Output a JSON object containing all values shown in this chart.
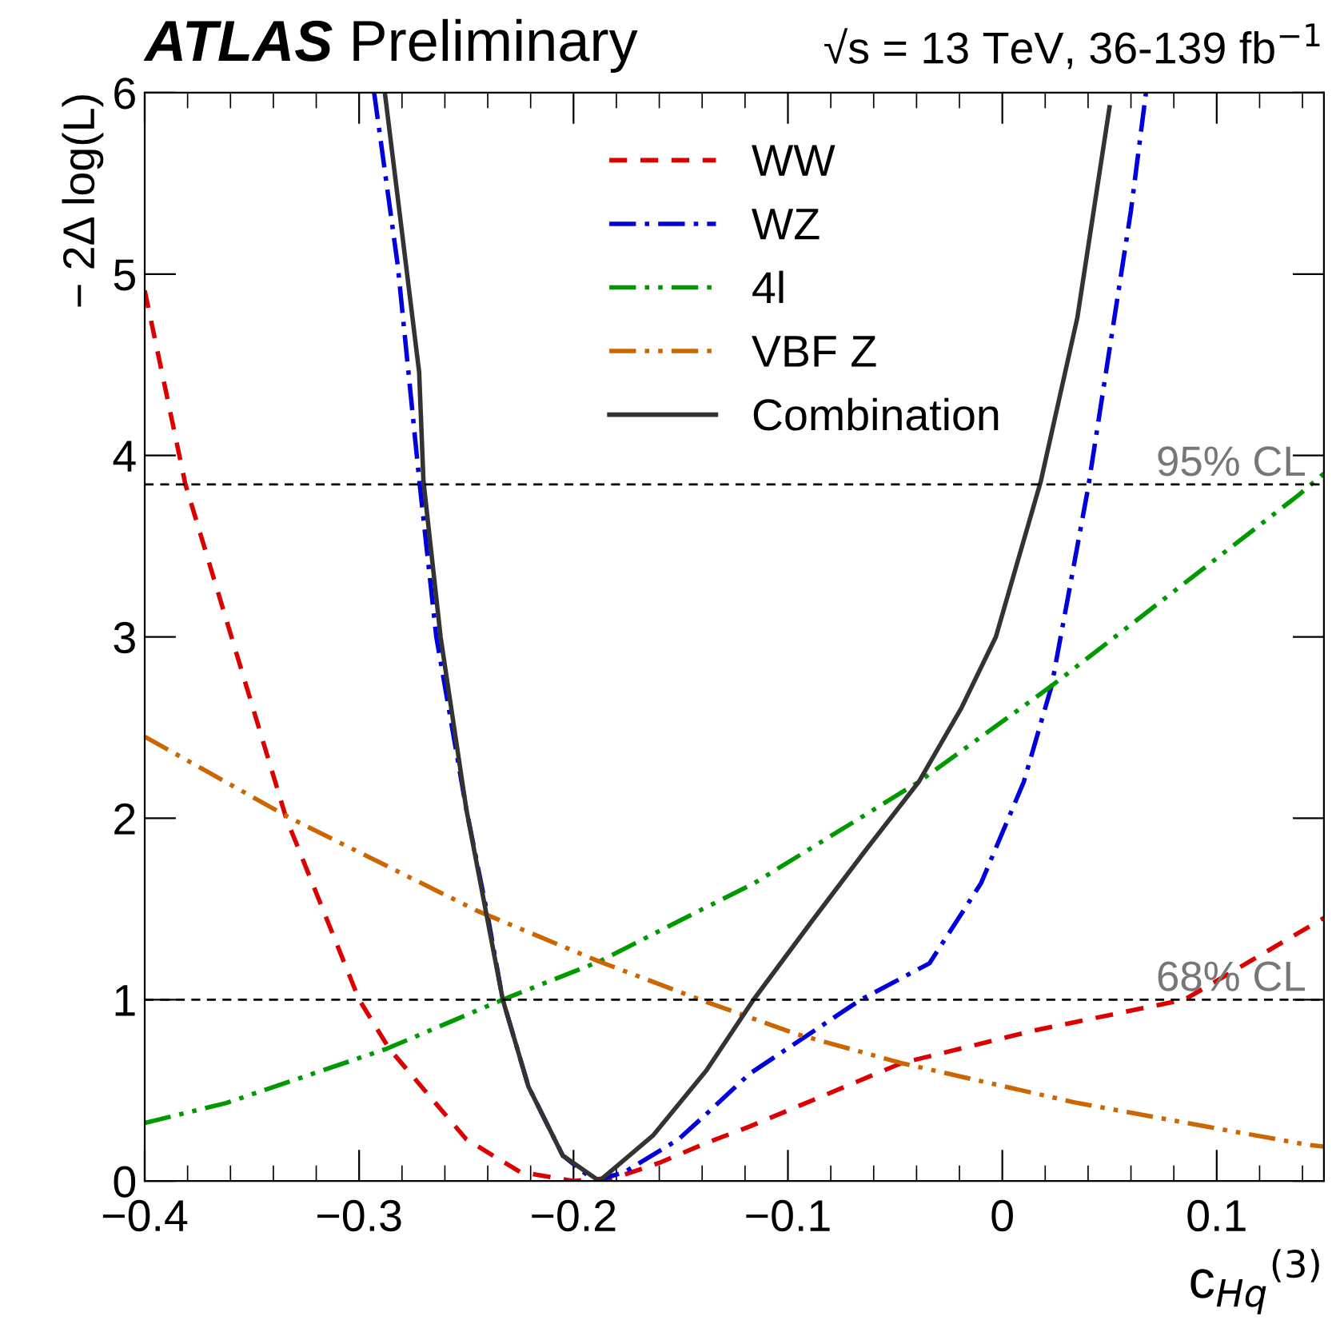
{
  "chart_data": {
    "type": "line",
    "title": "ATLAS",
    "subtitle": "Preliminary",
    "annotations": [
      "√s = 13 TeV, 36-139 fb$^{−1}$"
    ],
    "xlabel": "c$_{Hq}$$^{(3)}$",
    "ylabel": "− 2Δ log(L)",
    "xlim": [
      -0.4,
      0.15
    ],
    "ylim": [
      0,
      6
    ],
    "xticks": [
      {
        "value": -0.4,
        "label": "−0.4"
      },
      {
        "value": -0.3,
        "label": "−0.3"
      },
      {
        "value": -0.2,
        "label": "−0.2"
      },
      {
        "value": -0.1,
        "label": "−0.1"
      },
      0,
      0.1
    ],
    "yticks": [
      0,
      1,
      2,
      3,
      4,
      5,
      6
    ],
    "grid": false,
    "legend": "top",
    "ref_lines": [
      {
        "axis": "y",
        "value": 3.84,
        "label": "95% CL",
        "color": "#000000",
        "line_style": "dashed"
      },
      {
        "axis": "y",
        "value": 1,
        "label": "68% CL",
        "color": "#000000",
        "line_style": "dashed"
      }
    ],
    "series": [
      {
        "name": "WW",
        "color": "#dd0000",
        "line_style": "dashed",
        "x": [
          -0.4,
          -0.381,
          -0.334,
          -0.3,
          -0.286,
          -0.25,
          -0.225,
          -0.2,
          -0.18,
          -0.16,
          -0.138,
          -0.118,
          -0.047,
          0.015,
          0.085,
          0.15
        ],
        "values": [
          4.91,
          3.84,
          2.0,
          1.0,
          0.73,
          0.23,
          0.05,
          0.0,
          0.02,
          0.1,
          0.21,
          0.3,
          0.65,
          0.83,
          1.0,
          1.45
        ]
      },
      {
        "name": "WZ",
        "color": "#0000dd",
        "line_style": "dashdot",
        "x": [
          -0.293,
          -0.282,
          -0.272,
          -0.264,
          -0.25,
          -0.24,
          -0.233,
          -0.221,
          -0.205,
          -0.19,
          -0.176,
          -0.151,
          -0.138,
          -0.118,
          -0.066,
          -0.034,
          -0.01,
          0.01,
          0.023,
          0.04,
          0.06,
          0.067
        ],
        "values": [
          6.0,
          5.05,
          3.87,
          3.0,
          2.05,
          1.46,
          1.0,
          0.52,
          0.14,
          0.0,
          0.05,
          0.23,
          0.37,
          0.59,
          1.0,
          1.2,
          1.64,
          2.2,
          2.73,
          3.82,
          5.35,
          6.0
        ]
      },
      {
        "name": "4l",
        "color": "#009900",
        "line_style": "dashdotdot",
        "x": [
          -0.4,
          -0.362,
          -0.287,
          -0.233,
          -0.188,
          -0.138,
          -0.116,
          -0.039,
          0.023,
          0.138,
          0.15
        ],
        "values": [
          0.32,
          0.43,
          0.73,
          1.0,
          1.21,
          1.51,
          1.64,
          2.2,
          2.73,
          3.78,
          3.9
        ]
      },
      {
        "name": "VBF Z",
        "color": "#cc6600",
        "line_style": "dashdotdot",
        "x": [
          -0.4,
          -0.332,
          -0.245,
          -0.188,
          -0.141,
          -0.096,
          -0.047,
          0.035,
          0.142,
          0.15
        ],
        "values": [
          2.45,
          2.0,
          1.49,
          1.21,
          1.0,
          0.81,
          0.65,
          0.43,
          0.2,
          0.19
        ]
      },
      {
        "name": "Combination",
        "color": "#333333",
        "line_style": "solid",
        "x": [
          -0.288,
          -0.272,
          -0.27,
          -0.262,
          -0.25,
          -0.233,
          -0.221,
          -0.205,
          -0.188,
          -0.163,
          -0.138,
          -0.116,
          -0.089,
          -0.064,
          -0.039,
          -0.019,
          -0.003,
          0.018,
          0.035,
          0.05
        ],
        "values": [
          6.0,
          4.46,
          3.86,
          3.0,
          2.05,
          1.0,
          0.52,
          0.14,
          0.0,
          0.25,
          0.61,
          1.0,
          1.43,
          1.82,
          2.2,
          2.61,
          3.0,
          3.86,
          4.76,
          5.92
        ]
      }
    ]
  }
}
